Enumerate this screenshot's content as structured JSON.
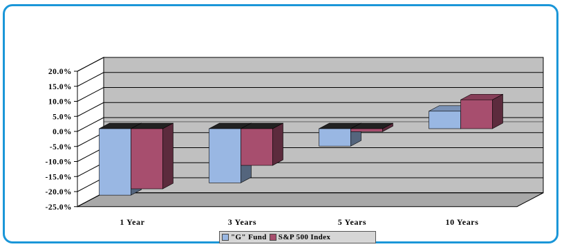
{
  "chart_data": {
    "type": "bar",
    "subtype": "3d-clustered-column",
    "categories": [
      "1 Year",
      "3 Years",
      "5 Years",
      "10 Years"
    ],
    "series": [
      {
        "name": "\"G\" Fund",
        "values": [
          -22.1,
          -18.0,
          -5.8,
          5.8
        ],
        "color": "#99b7e3"
      },
      {
        "name": "S&P 500 Index",
        "values": [
          -20.0,
          -12.2,
          -1.0,
          9.6
        ],
        "color": "#a74e6e"
      }
    ],
    "yticks": [
      "20.0%",
      "15.0%",
      "10.0%",
      "5.0%",
      "0.0%",
      "-5.0%",
      "-10.0%",
      "-15.0%",
      "-20.0%",
      "-25.0%"
    ],
    "ylim": [
      -25,
      20
    ],
    "grid": true,
    "legend_position": "bottom",
    "wall_color": "#c0c0c0",
    "frame_color": "#1a96d8"
  }
}
